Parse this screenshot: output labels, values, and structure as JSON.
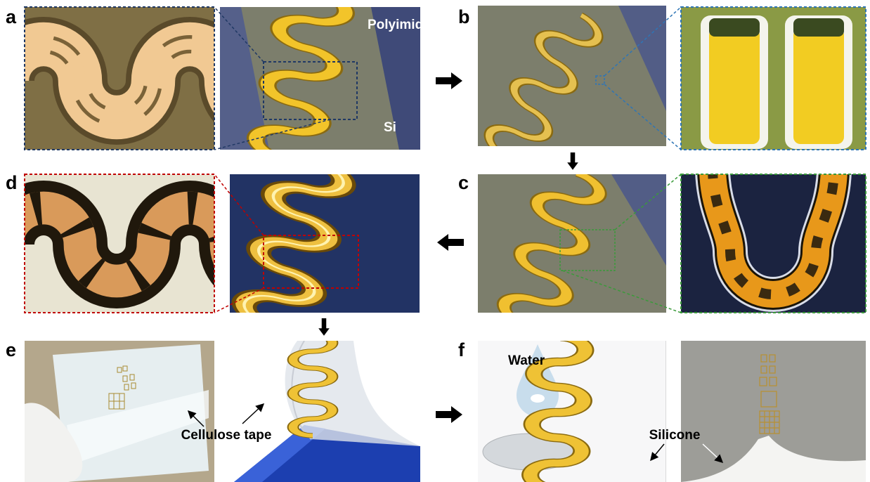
{
  "panels": [
    {
      "label": "a",
      "texts": [
        "Polyimide",
        "Si"
      ]
    },
    {
      "label": "b"
    },
    {
      "label": "c"
    },
    {
      "label": "d"
    },
    {
      "label": "e",
      "texts": [
        "Cellulose tape"
      ]
    },
    {
      "label": "f",
      "texts": [
        "Water",
        "Silicone"
      ]
    }
  ]
}
